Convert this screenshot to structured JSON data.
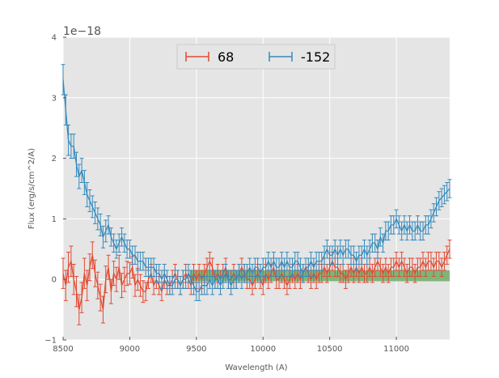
{
  "chart_data": {
    "type": "line",
    "title": "",
    "xlabel": "Wavelength (A)",
    "ylabel": "Flux (erg/s/cm^2/A)",
    "offset_label": "1e−18",
    "xlim": [
      8500,
      11400
    ],
    "ylim": [
      -1,
      4
    ],
    "y_scale_factor": 1e-18,
    "xticks": [
      8500,
      9000,
      9500,
      10000,
      10500,
      11000
    ],
    "xtick_labels": [
      "8500",
      "9000",
      "9500",
      "10000",
      "10500",
      "11000"
    ],
    "yticks": [
      -1,
      0,
      1,
      2,
      3,
      4
    ],
    "ytick_labels": [
      "−1",
      "0",
      "1",
      "2",
      "3",
      "4"
    ],
    "grid": true,
    "legend_position": "top-center",
    "band": {
      "x": [
        9450,
        11400
      ],
      "y": [
        -0.03,
        0.15
      ],
      "color": "#6cab65"
    },
    "series": [
      {
        "name": "68",
        "color": "#e24a33",
        "x": [
          8500,
          8520,
          8540,
          8560,
          8580,
          8600,
          8620,
          8640,
          8660,
          8680,
          8700,
          8720,
          8740,
          8760,
          8780,
          8800,
          8820,
          8840,
          8860,
          8880,
          8900,
          8920,
          8940,
          8960,
          8980,
          9000,
          9020,
          9040,
          9060,
          9080,
          9100,
          9120,
          9140,
          9160,
          9180,
          9200,
          9220,
          9240,
          9260,
          9280,
          9300,
          9320,
          9340,
          9360,
          9380,
          9400,
          9420,
          9440,
          9460,
          9480,
          9500,
          9520,
          9540,
          9560,
          9580,
          9600,
          9620,
          9640,
          9660,
          9680,
          9700,
          9720,
          9740,
          9760,
          9780,
          9800,
          9820,
          9840,
          9860,
          9880,
          9900,
          9920,
          9940,
          9960,
          9980,
          10000,
          10020,
          10040,
          10060,
          10080,
          10100,
          10120,
          10140,
          10160,
          10180,
          10200,
          10220,
          10240,
          10260,
          10280,
          10300,
          10320,
          10340,
          10360,
          10380,
          10400,
          10420,
          10440,
          10460,
          10480,
          10500,
          10520,
          10540,
          10560,
          10580,
          10600,
          10620,
          10640,
          10660,
          10680,
          10700,
          10720,
          10740,
          10760,
          10780,
          10800,
          10820,
          10840,
          10860,
          10880,
          10900,
          10920,
          10940,
          10960,
          10980,
          11000,
          11020,
          11040,
          11060,
          11080,
          11100,
          11120,
          11140,
          11160,
          11180,
          11200,
          11220,
          11240,
          11260,
          11280,
          11300,
          11320,
          11340,
          11360,
          11380,
          11400
        ],
        "y": [
          0.1,
          -0.1,
          0.2,
          0.3,
          0.0,
          -0.2,
          -0.5,
          -0.3,
          0.1,
          -0.1,
          0.2,
          0.4,
          0.1,
          -0.1,
          -0.3,
          -0.5,
          0.0,
          0.2,
          -0.2,
          0.1,
          0.0,
          0.2,
          -0.1,
          0.0,
          0.1,
          0.1,
          0.2,
          -0.1,
          0.0,
          -0.1,
          -0.2,
          -0.2,
          0.0,
          0.1,
          -0.1,
          0.0,
          -0.1,
          -0.2,
          0.0,
          -0.1,
          -0.1,
          0.0,
          0.1,
          0.0,
          -0.1,
          0.0,
          0.1,
          0.0,
          -0.1,
          0.1,
          0.0,
          0.1,
          0.0,
          0.1,
          0.2,
          0.3,
          0.2,
          0.0,
          0.1,
          0.0,
          0.1,
          0.2,
          0.0,
          0.0,
          0.1,
          0.0,
          0.1,
          0.2,
          0.1,
          0.0,
          0.0,
          -0.1,
          0.0,
          0.1,
          0.0,
          -0.1,
          0.1,
          0.0,
          0.1,
          0.2,
          0.0,
          0.0,
          0.1,
          0.0,
          -0.1,
          0.0,
          0.1,
          0.0,
          0.1,
          0.0,
          0.1,
          0.2,
          0.1,
          0.0,
          0.1,
          0.0,
          0.1,
          0.1,
          0.2,
          0.1,
          0.2,
          0.3,
          0.2,
          0.2,
          0.1,
          0.1,
          0.0,
          0.1,
          0.2,
          0.1,
          0.2,
          0.1,
          0.2,
          0.1,
          0.1,
          0.2,
          0.1,
          0.2,
          0.3,
          0.2,
          0.1,
          0.2,
          0.1,
          0.2,
          0.2,
          0.3,
          0.2,
          0.3,
          0.2,
          0.1,
          0.2,
          0.2,
          0.1,
          0.2,
          0.2,
          0.3,
          0.2,
          0.3,
          0.3,
          0.2,
          0.3,
          0.3,
          0.2,
          0.3,
          0.4,
          0.5
        ],
        "err": [
          0.25,
          0.25,
          0.25,
          0.25,
          0.25,
          0.25,
          0.25,
          0.25,
          0.25,
          0.25,
          0.22,
          0.22,
          0.22,
          0.22,
          0.22,
          0.22,
          0.22,
          0.2,
          0.2,
          0.2,
          0.2,
          0.2,
          0.2,
          0.2,
          0.2,
          0.18,
          0.18,
          0.18,
          0.18,
          0.18,
          0.18,
          0.15,
          0.15,
          0.15,
          0.15,
          0.15,
          0.15,
          0.15,
          0.15,
          0.15,
          0.15,
          0.15,
          0.15,
          0.15,
          0.15,
          0.15,
          0.15,
          0.15,
          0.15,
          0.15,
          0.15,
          0.15,
          0.15,
          0.15,
          0.15,
          0.15,
          0.15,
          0.15,
          0.15,
          0.15,
          0.15,
          0.15,
          0.15,
          0.15,
          0.15,
          0.15,
          0.15,
          0.15,
          0.15,
          0.15,
          0.15,
          0.15,
          0.15,
          0.15,
          0.15,
          0.15,
          0.15,
          0.15,
          0.15,
          0.15,
          0.15,
          0.15,
          0.15,
          0.15,
          0.15,
          0.15,
          0.15,
          0.15,
          0.15,
          0.15,
          0.15,
          0.15,
          0.15,
          0.15,
          0.15,
          0.15,
          0.15,
          0.15,
          0.15,
          0.15,
          0.15,
          0.15,
          0.15,
          0.15,
          0.15,
          0.15,
          0.15,
          0.15,
          0.15,
          0.15,
          0.15,
          0.15,
          0.15,
          0.15,
          0.15,
          0.15,
          0.15,
          0.15,
          0.15,
          0.15,
          0.15,
          0.15,
          0.15,
          0.15,
          0.15,
          0.15,
          0.15,
          0.15,
          0.15,
          0.15,
          0.15,
          0.15,
          0.15,
          0.15,
          0.15,
          0.15,
          0.15,
          0.15,
          0.15,
          0.15,
          0.15,
          0.15,
          0.15,
          0.15,
          0.15,
          0.15
        ]
      },
      {
        "name": "-152",
        "color": "#348abd",
        "x": [
          8500,
          8520,
          8540,
          8560,
          8580,
          8600,
          8620,
          8640,
          8660,
          8680,
          8700,
          8720,
          8740,
          8760,
          8780,
          8800,
          8820,
          8840,
          8860,
          8880,
          8900,
          8920,
          8940,
          8960,
          8980,
          9000,
          9020,
          9040,
          9060,
          9080,
          9100,
          9120,
          9140,
          9160,
          9180,
          9200,
          9220,
          9240,
          9260,
          9280,
          9300,
          9320,
          9340,
          9360,
          9380,
          9400,
          9420,
          9440,
          9460,
          9480,
          9500,
          9520,
          9540,
          9560,
          9580,
          9600,
          9620,
          9640,
          9660,
          9680,
          9700,
          9720,
          9740,
          9760,
          9780,
          9800,
          9820,
          9840,
          9860,
          9880,
          9900,
          9920,
          9940,
          9960,
          9980,
          10000,
          10020,
          10040,
          10060,
          10080,
          10100,
          10120,
          10140,
          10160,
          10180,
          10200,
          10220,
          10240,
          10260,
          10280,
          10300,
          10320,
          10340,
          10360,
          10380,
          10400,
          10420,
          10440,
          10460,
          10480,
          10500,
          10520,
          10540,
          10560,
          10580,
          10600,
          10620,
          10640,
          10660,
          10680,
          10700,
          10720,
          10740,
          10760,
          10780,
          10800,
          10820,
          10840,
          10860,
          10880,
          10900,
          10920,
          10940,
          10960,
          10980,
          11000,
          11020,
          11040,
          11060,
          11080,
          11100,
          11120,
          11140,
          11160,
          11180,
          11200,
          11220,
          11240,
          11260,
          11280,
          11300,
          11320,
          11340,
          11360,
          11380,
          11400
        ],
        "y": [
          3.3,
          2.8,
          2.3,
          2.2,
          2.2,
          1.9,
          1.7,
          1.8,
          1.6,
          1.4,
          1.3,
          1.2,
          1.1,
          1.0,
          0.9,
          0.7,
          0.8,
          0.9,
          0.7,
          0.6,
          0.5,
          0.6,
          0.7,
          0.6,
          0.5,
          0.5,
          0.4,
          0.4,
          0.3,
          0.3,
          0.3,
          0.2,
          0.2,
          0.2,
          0.2,
          0.1,
          0.1,
          0.0,
          0.1,
          0.0,
          -0.1,
          -0.1,
          0.0,
          0.0,
          -0.1,
          0.0,
          0.0,
          0.1,
          0.0,
          -0.1,
          -0.2,
          -0.2,
          -0.1,
          -0.1,
          -0.1,
          0.0,
          -0.1,
          0.0,
          0.0,
          -0.1,
          0.0,
          0.1,
          0.0,
          -0.1,
          0.0,
          0.0,
          0.1,
          0.0,
          0.1,
          0.1,
          0.2,
          0.1,
          0.2,
          0.2,
          0.1,
          0.2,
          0.2,
          0.3,
          0.2,
          0.3,
          0.2,
          0.2,
          0.3,
          0.2,
          0.3,
          0.2,
          0.2,
          0.3,
          0.3,
          0.2,
          0.1,
          0.2,
          0.2,
          0.3,
          0.2,
          0.3,
          0.3,
          0.3,
          0.4,
          0.5,
          0.4,
          0.4,
          0.5,
          0.4,
          0.5,
          0.4,
          0.5,
          0.5,
          0.4,
          0.4,
          0.3,
          0.4,
          0.4,
          0.5,
          0.4,
          0.5,
          0.6,
          0.6,
          0.5,
          0.7,
          0.6,
          0.8,
          0.8,
          0.9,
          0.9,
          1.0,
          0.9,
          0.8,
          0.9,
          0.8,
          0.9,
          0.8,
          0.8,
          0.9,
          0.8,
          0.8,
          0.9,
          0.9,
          1.0,
          1.1,
          1.2,
          1.3,
          1.35,
          1.4,
          1.45,
          1.5
        ],
        "err": [
          0.25,
          0.25,
          0.25,
          0.2,
          0.2,
          0.2,
          0.2,
          0.2,
          0.2,
          0.2,
          0.18,
          0.18,
          0.18,
          0.18,
          0.18,
          0.18,
          0.18,
          0.15,
          0.15,
          0.15,
          0.15,
          0.15,
          0.15,
          0.15,
          0.15,
          0.15,
          0.15,
          0.15,
          0.15,
          0.15,
          0.15,
          0.15,
          0.15,
          0.15,
          0.15,
          0.15,
          0.15,
          0.15,
          0.15,
          0.15,
          0.15,
          0.15,
          0.15,
          0.15,
          0.15,
          0.15,
          0.15,
          0.15,
          0.15,
          0.15,
          0.15,
          0.15,
          0.15,
          0.15,
          0.15,
          0.15,
          0.15,
          0.15,
          0.15,
          0.15,
          0.15,
          0.15,
          0.15,
          0.15,
          0.15,
          0.15,
          0.15,
          0.15,
          0.15,
          0.15,
          0.15,
          0.15,
          0.15,
          0.15,
          0.15,
          0.15,
          0.15,
          0.15,
          0.15,
          0.15,
          0.15,
          0.15,
          0.15,
          0.15,
          0.15,
          0.15,
          0.15,
          0.15,
          0.15,
          0.15,
          0.15,
          0.15,
          0.15,
          0.15,
          0.15,
          0.15,
          0.15,
          0.15,
          0.15,
          0.15,
          0.15,
          0.15,
          0.15,
          0.15,
          0.15,
          0.15,
          0.15,
          0.15,
          0.15,
          0.15,
          0.15,
          0.15,
          0.15,
          0.15,
          0.15,
          0.15,
          0.15,
          0.15,
          0.15,
          0.15,
          0.15,
          0.15,
          0.15,
          0.15,
          0.15,
          0.15,
          0.15,
          0.15,
          0.15,
          0.15,
          0.15,
          0.15,
          0.15,
          0.15,
          0.15,
          0.15,
          0.15,
          0.15,
          0.15,
          0.15,
          0.15,
          0.15,
          0.15,
          0.15,
          0.15,
          0.15
        ]
      }
    ]
  }
}
